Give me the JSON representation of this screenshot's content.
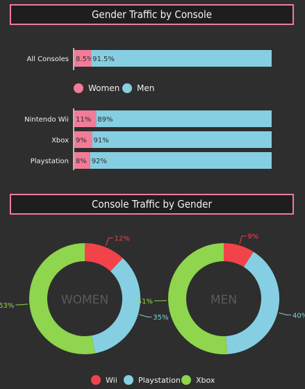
{
  "colors": {
    "women": "#f27c98",
    "men": "#86cfe2",
    "wii": "#f2434a",
    "playstation": "#86cfe2",
    "xbox": "#8fd54d",
    "background": "#2e2e2e",
    "title_border": "#f07c9a"
  },
  "chart_data": [
    {
      "type": "bar",
      "stacked": true,
      "orientation": "horizontal",
      "title": "Gender Traffic by Console",
      "categories": [
        "All Consoles",
        "Nintendo Wii",
        "Xbox",
        "Playstation"
      ],
      "series": [
        {
          "name": "Women",
          "values": [
            8.5,
            11,
            9,
            8
          ],
          "labels": [
            "8.5%",
            "11%",
            "9%",
            "8%"
          ]
        },
        {
          "name": "Men",
          "values": [
            91.5,
            89,
            91,
            92
          ],
          "labels": [
            "91.5%",
            "89%",
            "91%",
            "92%"
          ]
        }
      ],
      "xlim": [
        0,
        100
      ],
      "legend": "middle-center"
    },
    {
      "type": "pie",
      "donut": true,
      "title": "Console Traffic by Gender",
      "center_label": "WOMEN",
      "categories": [
        "Wii",
        "Playstation",
        "Xbox"
      ],
      "values": [
        12,
        35,
        53
      ],
      "labels": [
        "12%",
        "35%",
        "53%"
      ]
    },
    {
      "type": "pie",
      "donut": true,
      "center_label": "MEN",
      "categories": [
        "Wii",
        "Playstation",
        "Xbox"
      ],
      "values": [
        9,
        40,
        51
      ],
      "labels": [
        "9%",
        "40%",
        "51%"
      ]
    }
  ],
  "legend_bottom": [
    "Wii",
    "Playstation",
    "Xbox"
  ]
}
